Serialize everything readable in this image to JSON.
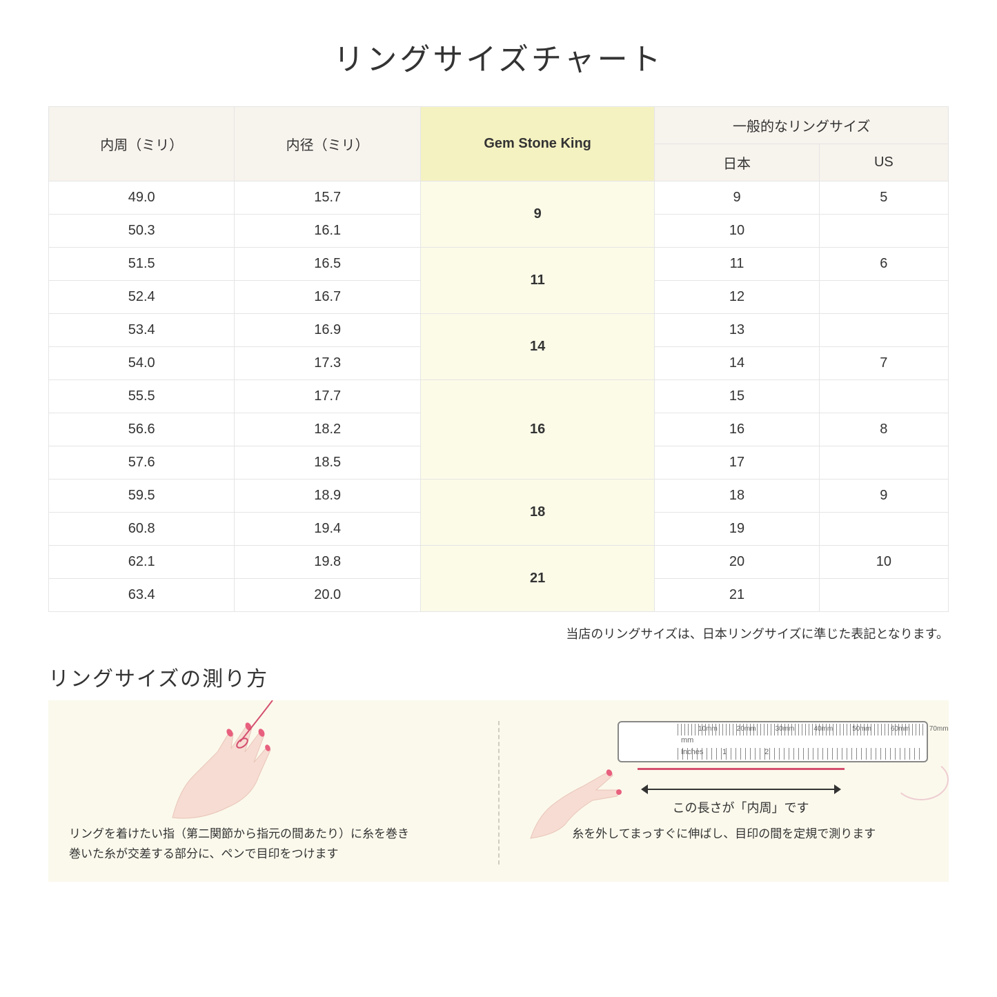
{
  "title": "リングサイズチャート",
  "headers": {
    "innerCirc": "内周（ミリ）",
    "innerDia": "内径（ミリ）",
    "gem": "Gem Stone King",
    "common": "一般的なリングサイズ",
    "japan": "日本",
    "us": "US"
  },
  "rows": [
    {
      "c": "49.0",
      "d": "15.7",
      "g": "9",
      "gspan": 2,
      "jp": "9",
      "us": "5"
    },
    {
      "c": "50.3",
      "d": "16.1",
      "jp": "10",
      "us": ""
    },
    {
      "c": "51.5",
      "d": "16.5",
      "g": "11",
      "gspan": 2,
      "jp": "11",
      "us": "6"
    },
    {
      "c": "52.4",
      "d": "16.7",
      "jp": "12",
      "us": ""
    },
    {
      "c": "53.4",
      "d": "16.9",
      "g": "14",
      "gspan": 2,
      "jp": "13",
      "us": ""
    },
    {
      "c": "54.0",
      "d": "17.3",
      "jp": "14",
      "us": "7"
    },
    {
      "c": "55.5",
      "d": "17.7",
      "g": "16",
      "gspan": 3,
      "jp": "15",
      "us": ""
    },
    {
      "c": "56.6",
      "d": "18.2",
      "jp": "16",
      "us": "8"
    },
    {
      "c": "57.6",
      "d": "18.5",
      "jp": "17",
      "us": ""
    },
    {
      "c": "59.5",
      "d": "18.9",
      "g": "18",
      "gspan": 2,
      "jp": "18",
      "us": "9"
    },
    {
      "c": "60.8",
      "d": "19.4",
      "jp": "19",
      "us": ""
    },
    {
      "c": "62.1",
      "d": "19.8",
      "g": "21",
      "gspan": 2,
      "jp": "20",
      "us": "10"
    },
    {
      "c": "63.4",
      "d": "20.0",
      "jp": "21",
      "us": ""
    }
  ],
  "note": "当店のリングサイズは、日本リングサイズに準じた表記となります。",
  "howto": {
    "title": "リングサイズの測り方",
    "left_caption": "リングを着けたい指（第二関節から指元の間あたり）に糸を巻き\n巻いた糸が交差する部分に、ペンで目印をつけます",
    "right_caption": "糸を外してまっすぐに伸ばし、目印の間を定規で測ります",
    "length_label": "この長さが「内周」です",
    "ruler": {
      "mm_labels": [
        "10mm",
        "20mm",
        "30mm",
        "40mm",
        "50mm",
        "60mm",
        "70mm"
      ],
      "mm_text": "mm",
      "in_text": "Inches",
      "in_nums": [
        "1",
        "2"
      ]
    }
  },
  "colors": {
    "header_bg": "#f7f3ed",
    "highlight_bg": "#f5f2c2",
    "gem_cell_bg": "#fcfbe8",
    "border": "#e5e5e5",
    "howto_bg": "#fbf9ec",
    "thread": "#d44e6e",
    "hand_fill": "#f7dcd3",
    "nail": "#e8607e"
  }
}
